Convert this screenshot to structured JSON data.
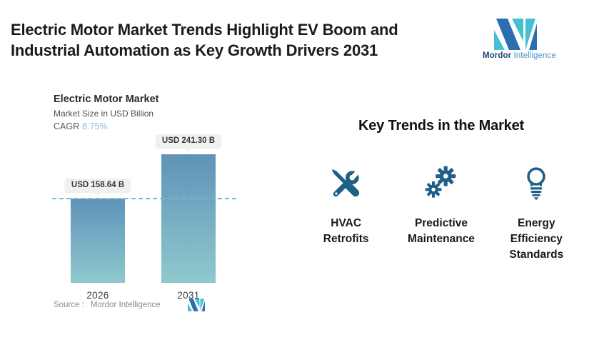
{
  "header": {
    "title_lines": [
      "Electric Motor Market Trends Highlight EV Boom and",
      "Industrial Automation as Key Growth Drivers 2031"
    ],
    "brand": {
      "name_bold": "Mordor",
      "name_light": "Intelligence"
    }
  },
  "chart_data": {
    "type": "bar",
    "title": "Electric Motor Market",
    "subtitle": "Market Size in USD Billion",
    "cagr_label": "CAGR",
    "cagr_value": "8.75%",
    "categories": [
      "2026",
      "2031"
    ],
    "values": [
      158.64,
      241.3
    ],
    "value_labels": [
      "USD 158.64 B",
      "USD 241.30 B"
    ],
    "unit": "USD Billion",
    "ylim": [
      0,
      241.3
    ],
    "reference_line_at": 158.64,
    "legend": "none",
    "grid": "off",
    "bar_gradient_top": "#5f93b8",
    "bar_gradient_bottom": "#8fc9cc",
    "dashed_line_color": "#79b2d8",
    "source_label": "Source :",
    "source_value": "Mordor Intelligence"
  },
  "trends": {
    "heading": "Key Trends in the Market",
    "items": [
      {
        "icon": "tools-icon",
        "label": "HVAC Retrofits",
        "lines": [
          "HVAC",
          "Retrofits"
        ]
      },
      {
        "icon": "gears-icon",
        "label": "Predictive Maintenance",
        "lines": [
          "Predictive",
          "Maintenance"
        ]
      },
      {
        "icon": "lightbulb-icon",
        "label": "Energy Efficiency Standards",
        "lines": [
          "Energy",
          "Efficiency",
          "Standards"
        ]
      }
    ]
  },
  "colors": {
    "icon_teal_blue": "#1e6086",
    "logo_dark_blue": "#2b6fb0",
    "logo_teal": "#45c0d2",
    "cagr_accent": "#84c2dc"
  }
}
